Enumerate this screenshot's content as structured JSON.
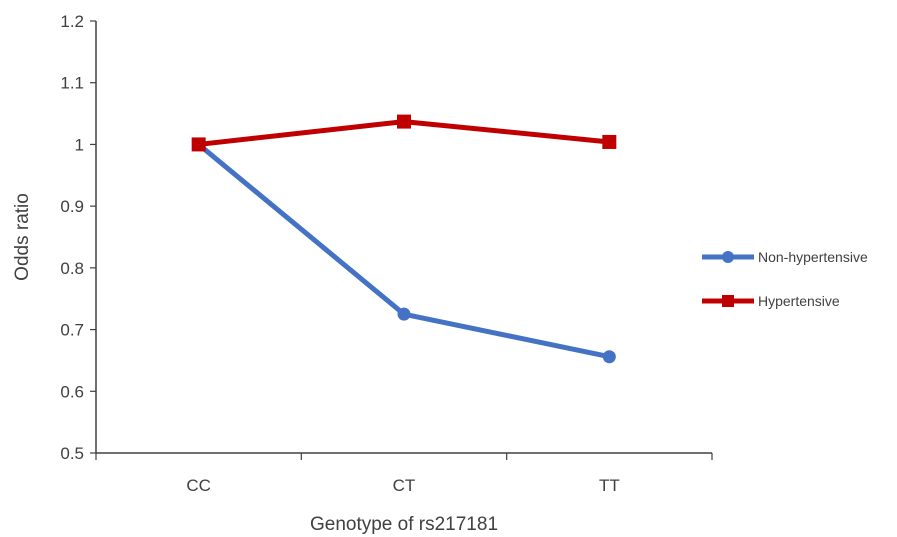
{
  "chart_data": {
    "type": "line",
    "categories": [
      "CC",
      "CT",
      "TT"
    ],
    "series": [
      {
        "name": "Non-hypertensive",
        "values": [
          1.0,
          0.725,
          0.656
        ],
        "color": "#4472C4",
        "marker": "circle"
      },
      {
        "name": "Hypertensive",
        "values": [
          1.0,
          1.037,
          1.004
        ],
        "color": "#C00000",
        "marker": "square"
      }
    ],
    "xlabel": "Genotype of rs217181",
    "ylabel": "Odds ratio",
    "ylim": [
      0.5,
      1.2
    ],
    "yticks": [
      "0.5",
      "0.6",
      "0.7",
      "0.8",
      "0.9",
      "1",
      "1.1",
      "1.2"
    ],
    "grid": false,
    "legend_position": "right"
  }
}
